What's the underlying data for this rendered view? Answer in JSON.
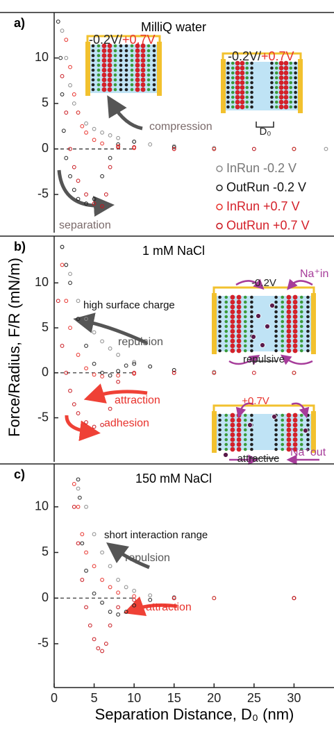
{
  "chart_data": [
    {
      "type": "scatter",
      "label": "a)",
      "title": "MilliQ water",
      "xlim": [
        0,
        35
      ],
      "ylim": [
        -9.2,
        15
      ],
      "yticks": [
        -5,
        0,
        5,
        10
      ],
      "hline": 0,
      "series": [
        {
          "name": "InRun -0.2 V",
          "color": "#8c8c8c",
          "x": [
            1,
            1.5,
            2,
            2.5,
            3,
            4,
            5,
            6,
            7,
            8,
            10,
            12,
            15,
            20,
            25,
            30,
            34
          ],
          "y": [
            13,
            10,
            7,
            5,
            4,
            2.8,
            2.2,
            1.8,
            1.5,
            1.2,
            0.8,
            0.5,
            0.3,
            0.1,
            0,
            0,
            0
          ]
        },
        {
          "name": "OutRun -0.2 V",
          "color": "#222222",
          "x": [
            0.5,
            0.8,
            1,
            1.2,
            1.5,
            2,
            2.5,
            3,
            4,
            5,
            6,
            7,
            8,
            10,
            15,
            20,
            30
          ],
          "y": [
            14,
            10,
            6,
            2,
            -1,
            -3,
            -4.5,
            -5.5,
            -6,
            -5.5,
            -3,
            -1,
            0.5,
            0.8,
            0.2,
            0,
            0
          ]
        },
        {
          "name": "InRun +0.7 V",
          "color": "#e8322c",
          "x": [
            1.5,
            2,
            2.5,
            3,
            3.5,
            4,
            5,
            6,
            8,
            10,
            15,
            20,
            30
          ],
          "y": [
            12,
            9,
            6,
            4,
            2.5,
            1.8,
            1,
            0.6,
            0.3,
            0.1,
            0,
            0,
            0
          ]
        },
        {
          "name": "OutRun +0.7 V",
          "color": "#c8161d",
          "x": [
            1,
            1.5,
            2,
            2.5,
            3,
            4,
            5,
            6,
            6.5,
            7,
            8,
            10,
            15,
            25
          ],
          "y": [
            8,
            4,
            0,
            -2,
            -3.5,
            -5,
            -6,
            -6.3,
            -5,
            -2,
            0.2,
            0.2,
            0,
            0
          ]
        }
      ],
      "annotations": [
        {
          "text": "-0.2V/",
          "color": "#222222"
        },
        {
          "text": "+0.7V",
          "color": "#e8322c"
        },
        {
          "text": "-0.2V/",
          "color": "#222222"
        },
        {
          "text": "+0.7V",
          "color": "#e8322c"
        },
        {
          "text": "D₀",
          "color": "#222222"
        },
        {
          "text": "compression",
          "color": "#7a6a6a"
        },
        {
          "text": "separation",
          "color": "#7a6a6a"
        }
      ]
    },
    {
      "type": "scatter",
      "label": "b)",
      "title": "1 mM NaCl",
      "ylabel": "Force/Radius, F/R (mN/m)",
      "xlim": [
        0,
        35
      ],
      "ylim": [
        -9.9,
        15.2
      ],
      "yticks": [
        -5,
        0,
        5,
        10
      ],
      "hline": 0,
      "series": [
        {
          "color": "#8c8c8c",
          "x": [
            1,
            2,
            3,
            4,
            5,
            6,
            7,
            8,
            10,
            12,
            15,
            20,
            30
          ],
          "y": [
            14,
            11,
            8,
            6,
            4.5,
            3.5,
            2.7,
            2,
            1.2,
            0.7,
            0.3,
            0.1,
            0
          ]
        },
        {
          "color": "#222222",
          "x": [
            1,
            1.5,
            2,
            3,
            4,
            5,
            6,
            7,
            8,
            9,
            10,
            12,
            15,
            20,
            30
          ],
          "y": [
            14,
            12,
            10,
            6,
            3,
            1,
            0,
            -0.3,
            0.2,
            0.8,
            1,
            0.7,
            0.3,
            0,
            0
          ]
        },
        {
          "color": "#e8322c",
          "x": [
            1,
            1.5,
            2,
            3,
            4,
            5,
            6,
            8,
            10,
            15,
            20,
            30
          ],
          "y": [
            12,
            8,
            5,
            2,
            0.5,
            -0.2,
            -0.4,
            -0.3,
            -0.1,
            0,
            0,
            0
          ]
        },
        {
          "color": "#c8161d",
          "x": [
            0.5,
            1,
            1.5,
            2,
            2.5,
            3,
            4,
            5,
            6,
            7,
            8,
            10,
            15,
            25
          ],
          "y": [
            8,
            3,
            0,
            -2,
            -3.5,
            -4.5,
            -5.5,
            -6,
            -5.8,
            -4,
            -1,
            0,
            0,
            0
          ]
        }
      ],
      "annotations": [
        {
          "text": "high surface charge",
          "color": "#111111"
        },
        {
          "text": "repulsion",
          "color": "#555555"
        },
        {
          "text": "attraction",
          "color": "#e8322c"
        },
        {
          "text": "adhesion",
          "color": "#e8322c"
        },
        {
          "text": "-0.2V",
          "color": "#222222"
        },
        {
          "text": "Na⁺in",
          "color": "#a63c9a"
        },
        {
          "text": "repulsive",
          "color": "#222222"
        },
        {
          "text": "+0.7V",
          "color": "#e8322c"
        },
        {
          "text": "attractive",
          "color": "#222222"
        },
        {
          "text": "Na⁺out",
          "color": "#a63c9a"
        }
      ]
    },
    {
      "type": "scatter",
      "label": "c)",
      "title": "150 mM NaCl",
      "xlabel": "Separation Distance, D₀ (nm)",
      "xlim": [
        0,
        35
      ],
      "xticks": [
        0,
        5,
        10,
        15,
        20,
        25,
        30
      ],
      "ylim": [
        -9.8,
        14.7
      ],
      "yticks": [
        -5,
        0,
        5,
        10
      ],
      "hline": 0,
      "series": [
        {
          "color": "#8c8c8c",
          "x": [
            3,
            4,
            5,
            6,
            7,
            8,
            9,
            10,
            12,
            15,
            20,
            30
          ],
          "y": [
            12,
            10,
            7,
            5,
            3.5,
            2,
            1.2,
            0.8,
            0.3,
            0.1,
            0,
            0
          ]
        },
        {
          "color": "#222222",
          "x": [
            3,
            3.2,
            3.5,
            4,
            5,
            6,
            7,
            8,
            9,
            10,
            12,
            15,
            20,
            30
          ],
          "y": [
            13,
            11,
            6,
            3,
            0.5,
            -0.5,
            -1.5,
            -1.8,
            -1.5,
            -0.8,
            -0.2,
            0,
            0,
            0
          ]
        },
        {
          "color": "#e8322c",
          "x": [
            2.5,
            3,
            3.5,
            4,
            5,
            6,
            7,
            8,
            10,
            15,
            20,
            30
          ],
          "y": [
            12.5,
            10,
            7,
            5,
            3.5,
            2,
            1.2,
            0.6,
            0.2,
            0,
            0,
            0
          ]
        },
        {
          "color": "#c8161d",
          "x": [
            2.5,
            3,
            3.5,
            4,
            4.5,
            5,
            5.5,
            6,
            6.5,
            7,
            8,
            10,
            15,
            30
          ],
          "y": [
            10,
            6,
            2,
            -1,
            -3,
            -4.5,
            -5.5,
            -5.8,
            -5,
            -3,
            -1,
            -0.2,
            0,
            0
          ]
        }
      ],
      "annotations": [
        {
          "text": "short interaction range",
          "color": "#111111"
        },
        {
          "text": "repulsion",
          "color": "#555555"
        },
        {
          "text": "attraction",
          "color": "#e8322c"
        }
      ]
    }
  ]
}
